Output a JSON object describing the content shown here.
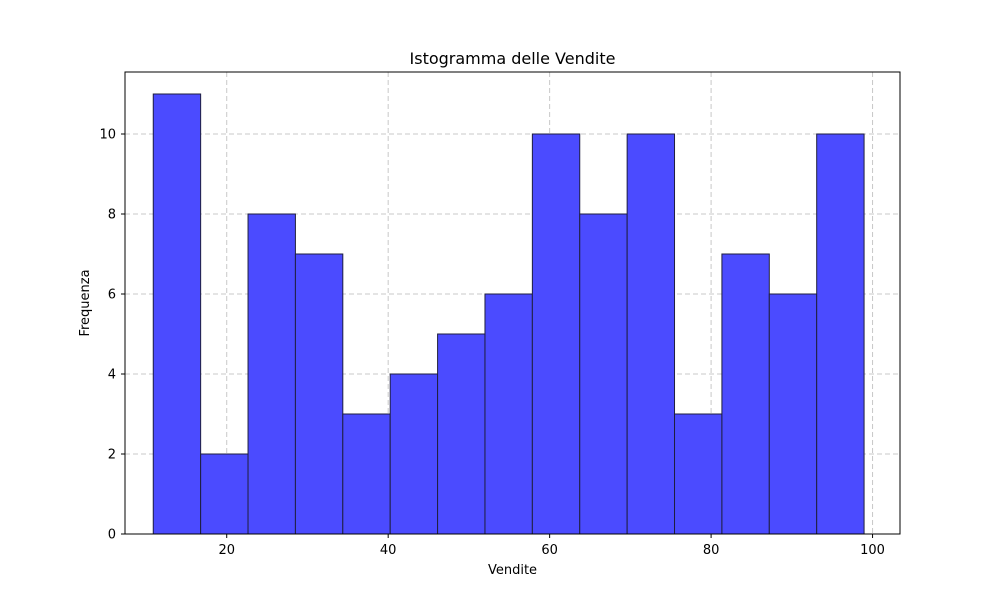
{
  "chart_data": {
    "type": "bar",
    "title": "Istogramma delle Vendite",
    "xlabel": "Vendite",
    "ylabel": "Frequenza",
    "bin_edges": [
      10.9,
      16.77,
      22.64,
      28.51,
      34.38,
      40.25,
      46.12,
      51.99,
      57.86,
      63.73,
      69.6,
      75.47,
      81.34,
      87.21,
      93.08,
      98.95
    ],
    "values": [
      11,
      2,
      8,
      7,
      3,
      4,
      5,
      6,
      10,
      8,
      10,
      3,
      7,
      6,
      10
    ],
    "xlim": [
      7.4,
      103.4
    ],
    "ylim": [
      0,
      11.55
    ],
    "xticks": [
      20,
      40,
      60,
      80,
      100
    ],
    "yticks": [
      0,
      2,
      4,
      6,
      8,
      10
    ],
    "grid": true,
    "bar_color": "#4b4bff",
    "edge_color": "#1f1f3f",
    "grid_color": "#c8c8c8"
  }
}
